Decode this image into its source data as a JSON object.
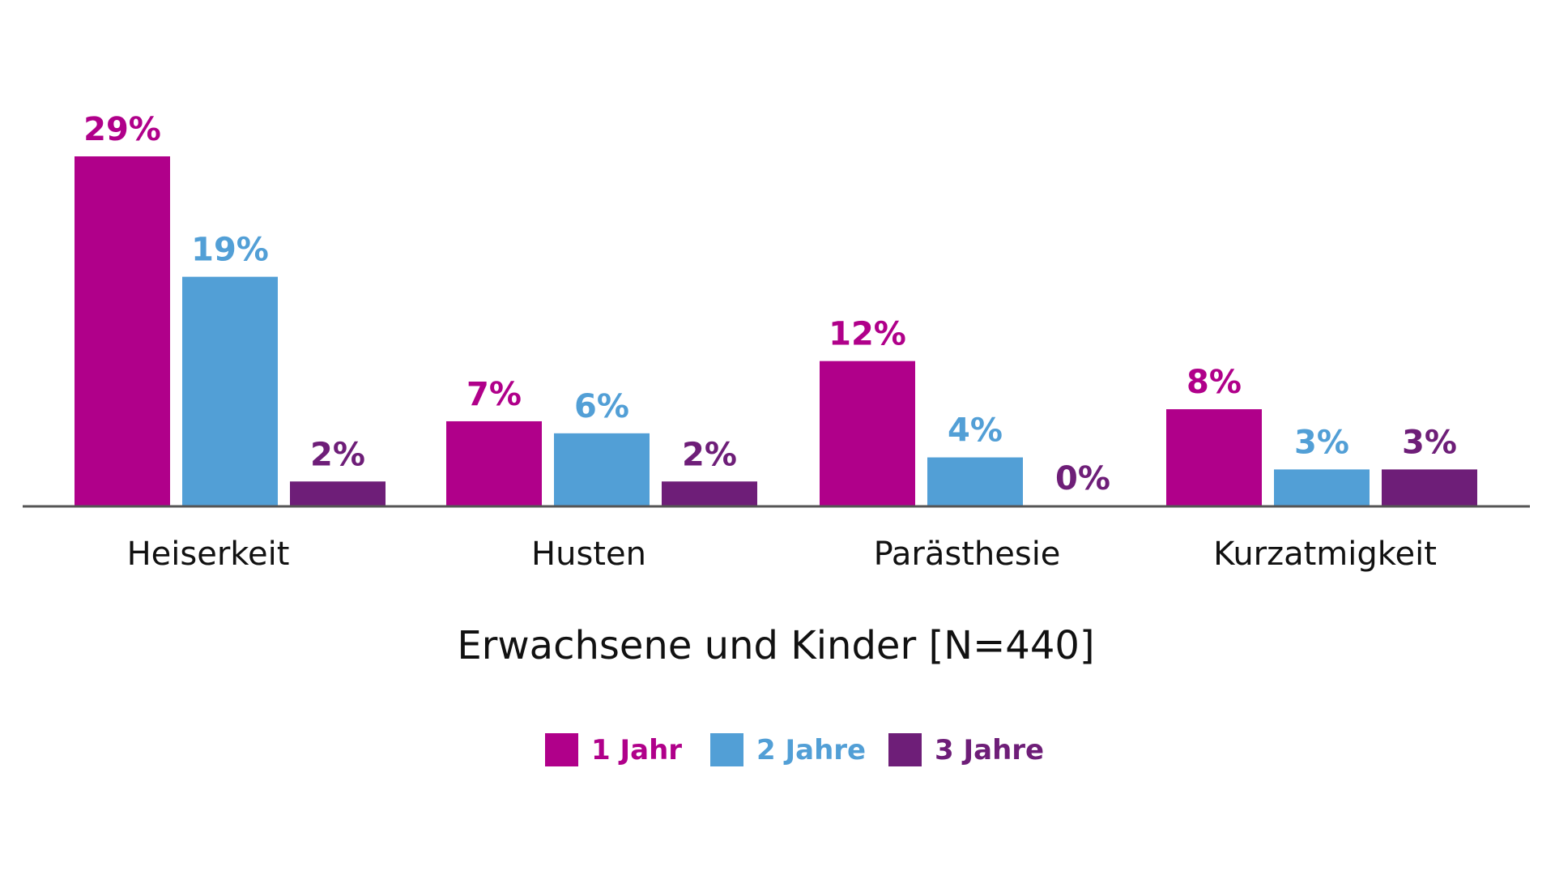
{
  "chart_data": {
    "type": "bar",
    "title": "",
    "xlabel": "Erwachsene und Kinder [N=440]",
    "ylabel": "",
    "ylim": [
      0,
      29
    ],
    "grid": false,
    "legend_position": "bottom",
    "categories": [
      "Heiserkeit",
      "Husten",
      "Parästhesie",
      "Kurzatmigkeit"
    ],
    "series": [
      {
        "name": "1 Jahr",
        "color": "#b0008a",
        "values": [
          29,
          7,
          12,
          8
        ],
        "labels": [
          "29%",
          "7%",
          "12%",
          "8%"
        ]
      },
      {
        "name": "2 Jahre",
        "color": "#529fd6",
        "values": [
          19,
          6,
          4,
          3
        ],
        "labels": [
          "19%",
          "6%",
          "4%",
          "3%"
        ]
      },
      {
        "name": "3 Jahre",
        "color": "#6e1e78",
        "values": [
          2,
          2,
          0,
          3
        ],
        "labels": [
          "2%",
          "2%",
          "0%",
          "3%"
        ]
      }
    ]
  }
}
